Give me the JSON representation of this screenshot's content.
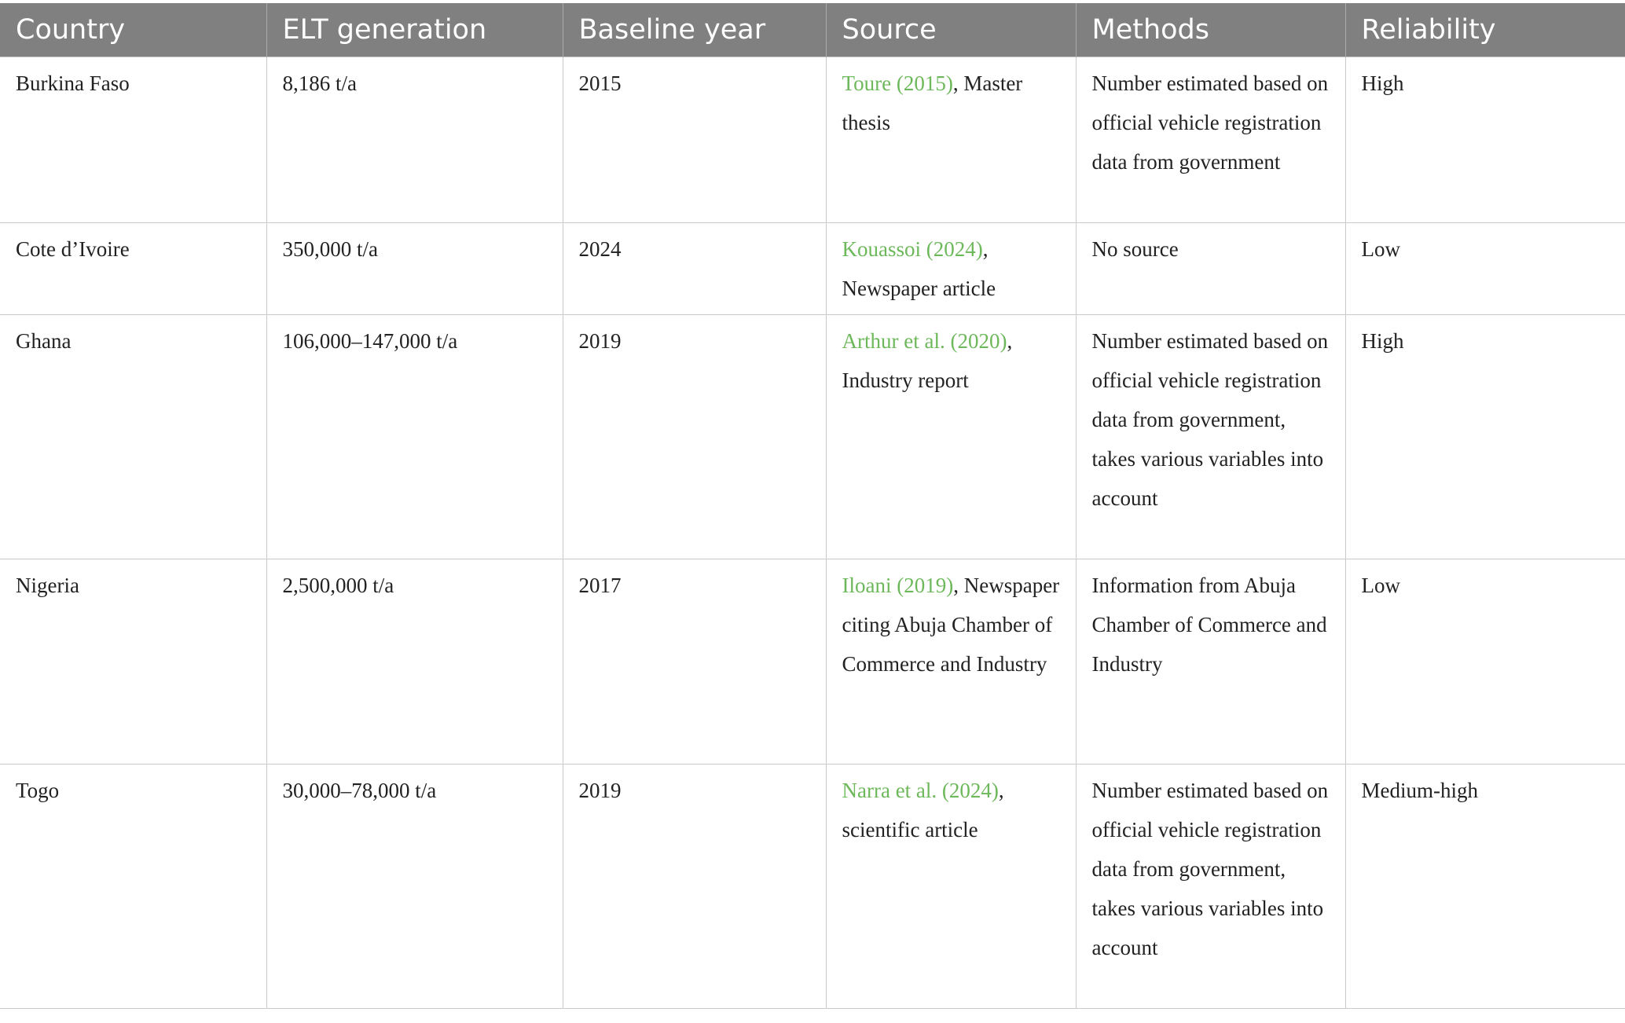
{
  "table": {
    "header": [
      "Country",
      "ELT generation",
      "Baseline year",
      "Source",
      "Methods",
      "Reliability"
    ],
    "rows": [
      [
        "Burkina Faso",
        "8,186 t/a",
        "2015",
        {
          "citation": "Toure (2015)",
          "rest": ", Master thesis"
        },
        "Number estimated based on official vehicle registration data from government",
        "High"
      ],
      [
        "Cote d’Ivoire",
        "350,000 t/a",
        "2024",
        {
          "citation": "Kouassoi (2024)",
          "rest": ", Newspaper article"
        },
        "No source",
        "Low"
      ],
      [
        "Ghana",
        "106,000–147,000 t/a",
        "2019",
        {
          "citation": "Arthur et al. (2020)",
          "rest": ", Industry report"
        },
        "Number estimated based on official vehicle registration data from government, takes various variables into account",
        "High"
      ],
      [
        "Nigeria",
        "2,500,000 t/a",
        "2017",
        {
          "citation": "Iloani (2019)",
          "rest": ", Newspaper citing Abuja Chamber of Commerce and Industry"
        },
        "Information from Abuja Chamber of Commerce and Industry",
        "Low"
      ],
      [
        "Togo",
        "30,000–78,000 t/a",
        "2019",
        {
          "citation": "Narra et al. (2024)",
          "rest": ", scientific article"
        },
        "Number estimated based on official vehicle registration data from government, takes various variables into account",
        "Medium-high"
      ]
    ]
  }
}
